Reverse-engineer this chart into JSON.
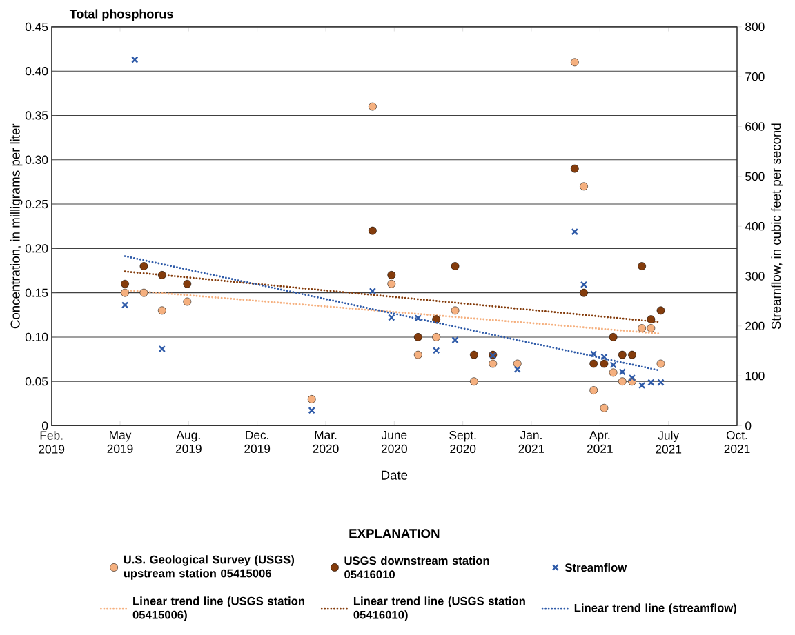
{
  "chart_data": {
    "type": "scatter",
    "title": "Total phosphorus",
    "xlabel": "Date",
    "ylabel": "Concentration, in milligrams per liter",
    "y2label": "Streamflow, in cubic feet per second",
    "legend_title": "EXPLANATION",
    "xlim": [
      "2019-02-15",
      "2021-10-22"
    ],
    "xticks": [
      {
        "value": "2019-02-15",
        "label": "Feb. 2019"
      },
      {
        "value": "2019-05-24",
        "label": "May 2019"
      },
      {
        "value": "2019-08-30",
        "label": "Aug. 2019"
      },
      {
        "value": "2019-12-06",
        "label": "Dec. 2019"
      },
      {
        "value": "2020-03-13",
        "label": "Mar. 2020"
      },
      {
        "value": "2020-06-19",
        "label": "June 2020"
      },
      {
        "value": "2020-09-25",
        "label": "Sept. 2020"
      },
      {
        "value": "2021-01-01",
        "label": "Jan. 2021"
      },
      {
        "value": "2021-04-09",
        "label": "Apr. 2021"
      },
      {
        "value": "2021-07-16",
        "label": "July 2021"
      },
      {
        "value": "2021-10-22",
        "label": "Oct. 2021"
      }
    ],
    "ylim": [
      0,
      0.45
    ],
    "yticks": [
      0,
      0.05,
      {
        "value": 0.1,
        "label": "0.10"
      },
      0.15,
      {
        "value": 0.2,
        "label": "0.20"
      },
      0.25,
      {
        "value": 0.3,
        "label": "0.30"
      },
      0.35,
      {
        "value": 0.4,
        "label": "0.40"
      },
      0.45
    ],
    "y2lim": [
      0,
      800
    ],
    "y2ticks": [
      0,
      100,
      200,
      300,
      400,
      500,
      600,
      700,
      800
    ],
    "grid": "y",
    "legend": "bottom",
    "series": [
      {
        "name": "U.S. Geological Survey (USGS) upstream station 05415006",
        "marker": "circle",
        "color": "#f5b07f",
        "x": [
          "2019-05-31",
          "2019-06-27",
          "2019-07-23",
          "2019-08-28",
          "2020-02-22",
          "2020-05-19",
          "2020-06-15",
          "2020-07-23",
          "2020-08-18",
          "2020-09-14",
          "2020-10-11",
          "2020-11-07",
          "2020-12-12",
          "2021-03-04",
          "2021-03-17",
          "2021-03-31",
          "2021-04-15",
          "2021-04-28",
          "2021-05-11",
          "2021-05-25",
          "2021-06-08",
          "2021-06-21",
          "2021-07-05"
        ],
        "values": [
          0.15,
          0.15,
          0.13,
          0.14,
          0.03,
          0.36,
          0.16,
          0.08,
          0.1,
          0.13,
          0.05,
          0.07,
          0.07,
          0.41,
          0.27,
          0.04,
          0.02,
          0.06,
          0.05,
          0.05,
          0.11,
          0.11,
          0.07
        ]
      },
      {
        "name": "USGS downstream station 05416010",
        "marker": "circle",
        "color": "#843c0c",
        "x": [
          "2019-05-31",
          "2019-06-27",
          "2019-07-23",
          "2019-08-28",
          "2020-05-19",
          "2020-06-15",
          "2020-07-23",
          "2020-08-18",
          "2020-09-14",
          "2020-10-11",
          "2020-11-07",
          "2021-03-04",
          "2021-03-17",
          "2021-03-31",
          "2021-04-15",
          "2021-04-28",
          "2021-05-11",
          "2021-05-25",
          "2021-06-08",
          "2021-06-21",
          "2021-07-05"
        ],
        "values": [
          0.16,
          0.18,
          0.17,
          0.16,
          0.22,
          0.17,
          0.1,
          0.12,
          0.18,
          0.08,
          0.08,
          0.29,
          0.15,
          0.07,
          0.07,
          0.1,
          0.08,
          0.08,
          0.18,
          0.12,
          0.13
        ]
      },
      {
        "name": "Streamflow",
        "marker": "cross",
        "axis": "y2",
        "color": "#2e5aa8",
        "x": [
          "2019-05-31",
          "2019-06-14",
          "2019-07-23",
          "2020-02-22",
          "2020-05-19",
          "2020-06-15",
          "2020-07-23",
          "2020-08-18",
          "2020-09-14",
          "2020-11-07",
          "2020-12-12",
          "2021-03-04",
          "2021-03-17",
          "2021-03-31",
          "2021-04-15",
          "2021-04-28",
          "2021-05-11",
          "2021-05-25",
          "2021-06-08",
          "2021-06-21",
          "2021-07-05"
        ],
        "values": [
          242,
          734,
          154,
          31,
          270,
          217,
          216,
          151,
          172,
          141,
          113,
          389,
          283,
          144,
          138,
          122,
          108,
          96,
          81,
          87,
          87
        ]
      },
      {
        "name": "Linear trend line (USGS station 05415006)",
        "type": "line",
        "marker": "none",
        "line_style": "dotted",
        "color": "#f5b07f",
        "x": [
          "2019-05-31",
          "2021-07-03"
        ],
        "values": [
          0.153,
          0.104
        ]
      },
      {
        "name": "Linear trend line (USGS station 05416010)",
        "type": "line",
        "marker": "none",
        "line_style": "dotted",
        "color": "#843c0c",
        "x": [
          "2019-05-31",
          "2021-07-03"
        ],
        "values": [
          0.174,
          0.117
        ]
      },
      {
        "name": "Linear trend line (streamflow)",
        "type": "line",
        "marker": "none",
        "line_style": "dotted",
        "axis": "y2",
        "color": "#2e5aa8",
        "x": [
          "2019-05-31",
          "2021-07-03"
        ],
        "values": [
          340,
          111
        ]
      }
    ]
  }
}
